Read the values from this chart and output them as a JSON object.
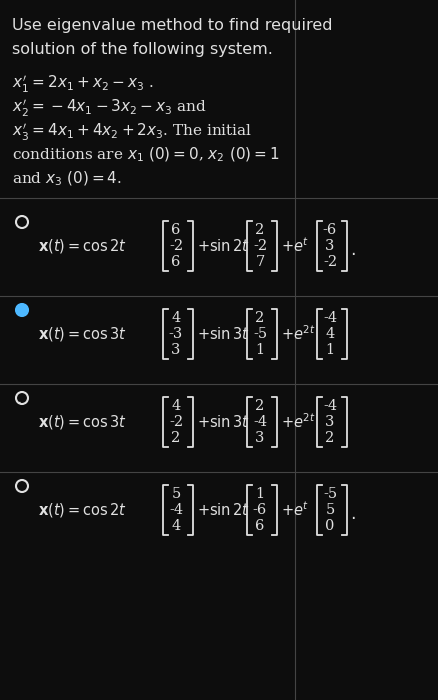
{
  "bg_color": "#0d0d0d",
  "text_color": "#e0e0e0",
  "highlight_color": "#4db8ff",
  "fs_title": 11.5,
  "fs_sys": 11,
  "fs_opt": 10.5,
  "title_lines": [
    "Use eigenvalue method to find required",
    "solution of the following system."
  ],
  "sys_eqs": [
    "$x_1' = 2x_1 + x_2 - x_3$ .",
    "$x_2' = -4x_1 - 3x_2 - x_3$ and",
    "$x_3' = 4x_1 + 4x_2 + 2x_3$. The initial",
    "conditions are $x_1$ $(0) = 0$, $x_2$ $(0) = 1$",
    "and $x_3$ $(0) = 4$."
  ],
  "options": [
    {
      "selected": false,
      "label": "$\\mathbf{x}(t) = \\cos 2t$",
      "v1": [
        "6",
        "-2",
        "6"
      ],
      "trig": "$+ \\sin 2t$",
      "v2": [
        "2",
        "-2",
        "7"
      ],
      "exp": "$+ e^{t}$",
      "v3": [
        "-6",
        "3",
        "-2"
      ],
      "dot": true
    },
    {
      "selected": true,
      "label": "$\\mathbf{x}(t) = \\cos 3t$",
      "v1": [
        "4",
        "-3",
        "3"
      ],
      "trig": "$+ \\sin 3t$",
      "v2": [
        "2",
        "-5",
        "1"
      ],
      "exp": "$+ e^{2t}$",
      "v3": [
        "-4",
        "4",
        "1"
      ],
      "dot": false
    },
    {
      "selected": false,
      "label": "$\\mathbf{x}(t) = \\cos 3t$",
      "v1": [
        "4",
        "-2",
        "2"
      ],
      "trig": "$+ \\sin 3t$",
      "v2": [
        "2",
        "-4",
        "3"
      ],
      "exp": "$+ e^{2t}$",
      "v3": [
        "-4",
        "3",
        "2"
      ],
      "dot": false
    },
    {
      "selected": false,
      "label": "$\\mathbf{x}(t) = \\cos 2t$",
      "v1": [
        "5",
        "-4",
        "4"
      ],
      "trig": "$+ \\sin 2t$",
      "v2": [
        "1",
        "-6",
        "6"
      ],
      "exp": "$+ e^{t}$",
      "v3": [
        "-5",
        "5",
        "0"
      ],
      "dot": true
    }
  ]
}
